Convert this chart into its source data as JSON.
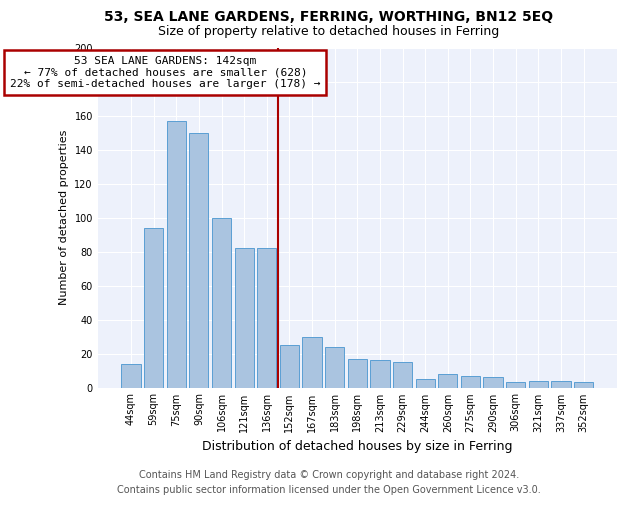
{
  "title": "53, SEA LANE GARDENS, FERRING, WORTHING, BN12 5EQ",
  "subtitle": "Size of property relative to detached houses in Ferring",
  "xlabel": "Distribution of detached houses by size in Ferring",
  "ylabel": "Number of detached properties",
  "categories": [
    "44sqm",
    "59sqm",
    "75sqm",
    "90sqm",
    "106sqm",
    "121sqm",
    "136sqm",
    "152sqm",
    "167sqm",
    "183sqm",
    "198sqm",
    "213sqm",
    "229sqm",
    "244sqm",
    "260sqm",
    "275sqm",
    "290sqm",
    "306sqm",
    "321sqm",
    "337sqm",
    "352sqm"
  ],
  "values": [
    14,
    94,
    157,
    150,
    100,
    82,
    82,
    25,
    30,
    24,
    17,
    16,
    15,
    5,
    8,
    7,
    6,
    3,
    4,
    4,
    3
  ],
  "bar_color": "#aac4e0",
  "bar_edge_color": "#5a9fd4",
  "property_line_x": 6.5,
  "annotation_text": "53 SEA LANE GARDENS: 142sqm\n← 77% of detached houses are smaller (628)\n22% of semi-detached houses are larger (178) →",
  "annotation_box_color": "#ffffff",
  "annotation_box_edge_color": "#aa0000",
  "vline_color": "#aa0000",
  "ylim": [
    0,
    200
  ],
  "yticks": [
    0,
    20,
    40,
    60,
    80,
    100,
    120,
    140,
    160,
    180,
    200
  ],
  "background_color": "#edf1fb",
  "grid_color": "#ffffff",
  "footer_line1": "Contains HM Land Registry data © Crown copyright and database right 2024.",
  "footer_line2": "Contains public sector information licensed under the Open Government Licence v3.0.",
  "title_fontsize": 10,
  "subtitle_fontsize": 9,
  "xlabel_fontsize": 9,
  "ylabel_fontsize": 8,
  "tick_fontsize": 7,
  "annotation_fontsize": 8,
  "footer_fontsize": 7
}
